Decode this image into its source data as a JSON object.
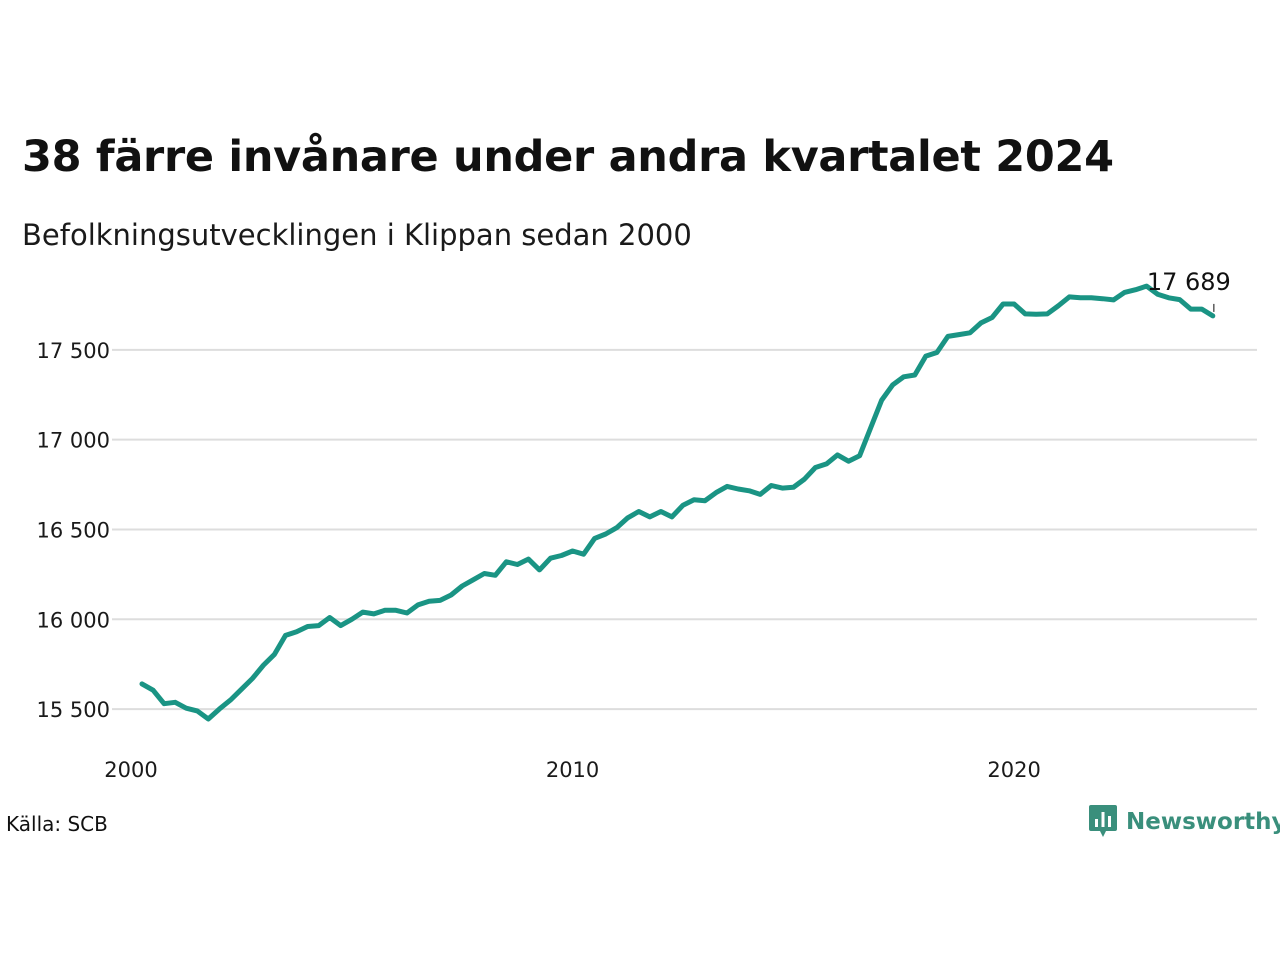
{
  "header": {
    "title": "38 färre invånare under andra kvartalet 2024",
    "subtitle": "Befolkningsutvecklingen i Klippan sedan 2000"
  },
  "footer": {
    "source": "Källa: SCB",
    "brand": "Newsworthy"
  },
  "colors": {
    "line": "#1a9484",
    "grid": "#dddddd",
    "brand": "#3a8f7c"
  },
  "icons": {
    "brand_logo": "newsworthy-logo-icon"
  },
  "chart_data": {
    "type": "line",
    "title": "38 färre invånare under andra kvartalet 2024",
    "subtitle": "Befolkningsutvecklingen i Klippan sedan 2000",
    "xlabel": "",
    "ylabel": "",
    "xlim": [
      2000,
      2025.5
    ],
    "ylim": [
      15300,
      17900
    ],
    "yticks": [
      15500,
      16000,
      16500,
      17000,
      17500
    ],
    "ytick_labels": [
      "15 500",
      "16 000",
      "16 500",
      "17 000",
      "17 500"
    ],
    "xticks": [
      2000,
      2010,
      2020
    ],
    "xtick_labels": [
      "2000",
      "2010",
      "2020"
    ],
    "grid": "horizontal",
    "legend": "none",
    "last_value_label": "17 689",
    "x": [
      2000.25,
      2000.5,
      2000.75,
      2001.0,
      2001.25,
      2001.5,
      2001.75,
      2002.0,
      2002.25,
      2002.5,
      2002.75,
      2003.0,
      2003.25,
      2003.5,
      2003.75,
      2004.0,
      2004.25,
      2004.5,
      2004.75,
      2005.0,
      2005.25,
      2005.5,
      2005.75,
      2006.0,
      2006.25,
      2006.5,
      2006.75,
      2007.0,
      2007.25,
      2007.5,
      2007.75,
      2008.0,
      2008.25,
      2008.5,
      2008.75,
      2009.0,
      2009.25,
      2009.5,
      2009.75,
      2010.0,
      2010.25,
      2010.5,
      2010.75,
      2011.0,
      2011.25,
      2011.5,
      2011.75,
      2012.0,
      2012.25,
      2012.5,
      2012.75,
      2013.0,
      2013.25,
      2013.5,
      2013.75,
      2014.0,
      2014.25,
      2014.5,
      2014.75,
      2015.0,
      2015.25,
      2015.5,
      2015.75,
      2016.0,
      2016.25,
      2016.5,
      2016.75,
      2017.0,
      2017.25,
      2017.5,
      2017.75,
      2018.0,
      2018.25,
      2018.5,
      2018.75,
      2019.0,
      2019.25,
      2019.5,
      2019.75,
      2020.0,
      2020.25,
      2020.5,
      2020.75,
      2021.0,
      2021.25,
      2021.5,
      2021.75,
      2022.0,
      2022.25,
      2022.5,
      2022.75,
      2023.0,
      2023.25,
      2023.5,
      2023.75,
      2024.0,
      2024.25,
      2024.5
    ],
    "series": [
      {
        "values": [
          15640,
          15605,
          15530,
          15538,
          15505,
          15490,
          15445,
          15500,
          15550,
          15610,
          15670,
          15745,
          15805,
          15910,
          15930,
          15960,
          15965,
          16010,
          15965,
          16000,
          16040,
          16030,
          16050,
          16050,
          16035,
          16080,
          16100,
          16105,
          16135,
          16185,
          16220,
          16255,
          16245,
          16320,
          16305,
          16335,
          16275,
          16340,
          16355,
          16380,
          16362,
          16450,
          16475,
          16510,
          16565,
          16600,
          16570,
          16600,
          16570,
          16635,
          16665,
          16660,
          16705,
          16740,
          16725,
          16715,
          16695,
          16745,
          16730,
          16735,
          16780,
          16845,
          16865,
          16915,
          16880,
          16910,
          17065,
          17220,
          17305,
          17350,
          17360,
          17465,
          17485,
          17575,
          17585,
          17595,
          17650,
          17680,
          17755,
          17755,
          17700,
          17698,
          17700,
          17745,
          17795,
          17790,
          17790,
          17785,
          17778,
          17820,
          17835,
          17855,
          17810,
          17790,
          17780,
          17727,
          17727,
          17689
        ]
      }
    ]
  }
}
